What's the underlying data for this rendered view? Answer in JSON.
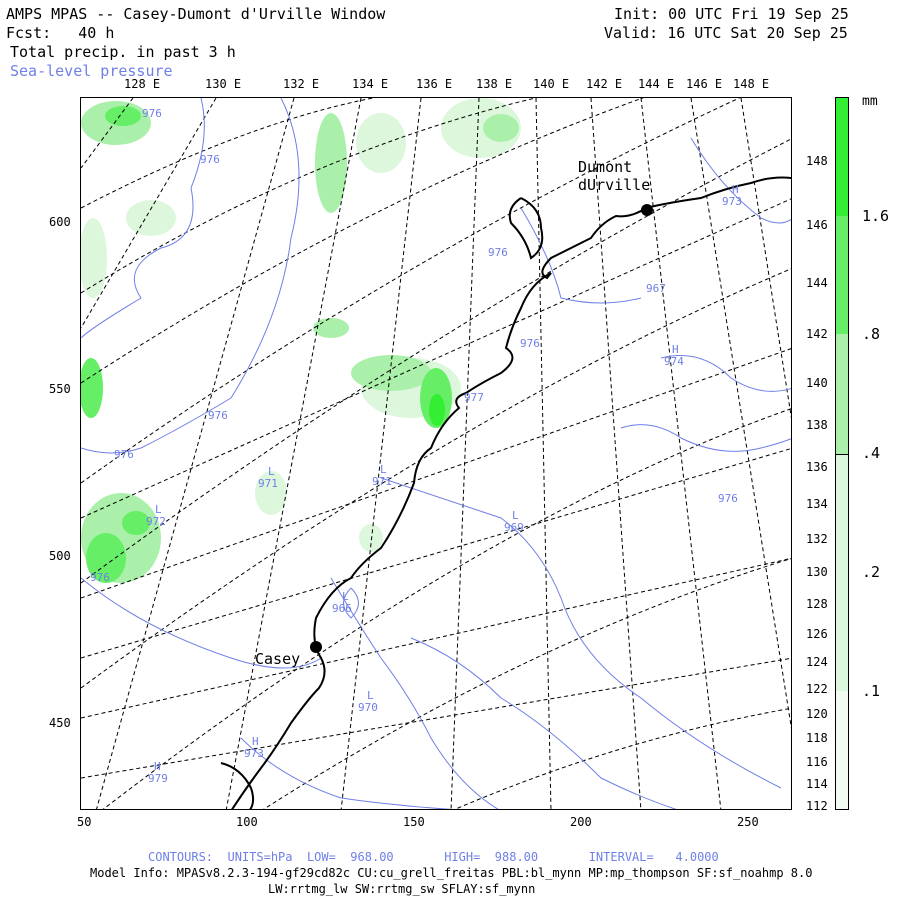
{
  "header": {
    "title": "AMPS MPAS -- Casey-Dumont d'Urville Window",
    "init": "Init: 00 UTC Fri 19 Sep 25",
    "forecast": "Fcst:   40 h",
    "valid": "Valid: 16 UTC Sat 20 Sep 25",
    "field1": "Total precip. in past 3 h",
    "field2": "Sea-level pressure"
  },
  "axes": {
    "x_ticks": [
      "50",
      "100",
      "150",
      "200",
      "250"
    ],
    "y_ticks": [
      "600",
      "550",
      "500",
      "450"
    ],
    "top_lon": [
      "128 E",
      "130 E",
      "132 E",
      "134 E",
      "136 E",
      "138 E",
      "140 E",
      "142 E",
      "144 E",
      "146 E",
      "148 E"
    ],
    "right_lon": [
      "148 E",
      "146 E",
      "144 E",
      "142 E",
      "140 E",
      "138 E",
      "136 E",
      "134 E",
      "132 E",
      "130 E",
      "128 E",
      "126 E",
      "124 E",
      "122 E",
      "120 E",
      "118 E",
      "116 E",
      "114 E",
      "112 E"
    ]
  },
  "legend": {
    "unit": "mm",
    "labels": [
      "1.6",
      ".8",
      ".4",
      ".2",
      ".1"
    ],
    "colors": {
      "c16": "#33ee33",
      "c08": "#66ee66",
      "c04": "#aaf0aa",
      "c02": "#ddf7dd",
      "c01": "#f2fbf2"
    }
  },
  "places": {
    "dumont": "Dumont\ndUrville",
    "casey": "Casey"
  },
  "contour_labels": [
    "976",
    "976",
    "976",
    "976",
    "976",
    "976",
    "976",
    "976",
    "977",
    "967",
    "974",
    "971",
    "971",
    "969",
    "972",
    "966",
    "970",
    "979",
    "973",
    "973"
  ],
  "pressure_marks": [
    "L",
    "L",
    "L",
    "L",
    "L",
    "L",
    "H",
    "H",
    "H",
    "H"
  ],
  "footer": {
    "contours": "CONTOURS:  UNITS=hPa  LOW=  968.00       HIGH=  988.00       INTERVAL=   4.0000",
    "model1": "Model Info: MPASv8.2.3-194-gf29cd82c CU:cu_grell_freitas PBL:bl_mynn MP:mp_thompson SF:sf_noahmp 8.0",
    "model2": "LW:rrtmg_lw SW:rrtmg_sw SFLAY:sf_mynn"
  },
  "colors": {
    "contour": "#6f7fe6",
    "grid": "#000000",
    "coast": "#000000"
  }
}
